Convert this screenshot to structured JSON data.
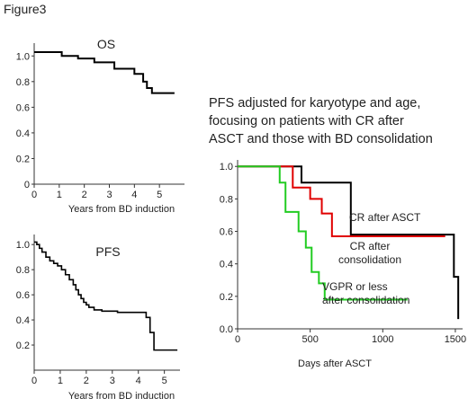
{
  "figure_label": "Figure3",
  "chart_data": [
    {
      "id": "os",
      "type": "line",
      "title": "OS",
      "xlabel": "Years from BD induction",
      "ylabel": "",
      "xlim": [
        0,
        6
      ],
      "ylim": [
        0,
        1.1
      ],
      "x_ticks": [
        0,
        1,
        2,
        3,
        4,
        5
      ],
      "y_ticks": [
        0,
        0.2,
        0.4,
        0.6,
        0.8,
        1.0
      ],
      "y_tick_labels": [
        "0",
        "0.2",
        "0.4",
        "0.6",
        "0.8",
        "1.0"
      ],
      "series": [
        {
          "color": "#000000",
          "x": [
            0,
            0.55,
            1.1,
            1.75,
            2.4,
            3.2,
            4.0,
            4.35,
            4.5,
            4.7,
            5.6
          ],
          "y": [
            1.03,
            1.03,
            1.0,
            0.98,
            0.95,
            0.9,
            0.86,
            0.8,
            0.75,
            0.71,
            0.71
          ]
        }
      ]
    },
    {
      "id": "pfs",
      "type": "line",
      "title": "PFS",
      "xlabel": "Years from BD induction",
      "ylabel": "",
      "xlim": [
        0,
        5.6
      ],
      "ylim": [
        0,
        1.08
      ],
      "x_ticks": [
        0,
        1,
        2,
        3,
        4,
        5
      ],
      "y_ticks": [
        0.2,
        0.4,
        0.6,
        0.8,
        1.0
      ],
      "y_tick_labels": [
        "0.2",
        "0.4",
        "0.6",
        "0.8",
        "1.0"
      ],
      "series": [
        {
          "color": "#000000",
          "x": [
            0,
            0.1,
            0.2,
            0.3,
            0.45,
            0.6,
            0.75,
            0.9,
            1.05,
            1.2,
            1.35,
            1.5,
            1.6,
            1.7,
            1.8,
            1.9,
            2.0,
            2.1,
            2.3,
            2.6,
            3.2,
            3.5,
            4.3,
            4.45,
            4.6,
            5.5
          ],
          "y": [
            1.02,
            1.0,
            0.97,
            0.94,
            0.9,
            0.87,
            0.85,
            0.83,
            0.8,
            0.76,
            0.72,
            0.68,
            0.64,
            0.6,
            0.57,
            0.54,
            0.52,
            0.5,
            0.48,
            0.47,
            0.46,
            0.46,
            0.42,
            0.3,
            0.16,
            0.16
          ]
        }
      ]
    },
    {
      "id": "adjusted",
      "type": "line",
      "title": "PFS adjusted for karyotype and age, focusing on patients with CR after ASCT and those with BD consolidation",
      "title_lines": [
        "PFS adjusted for karyotype and age,",
        "focusing on patients with CR after",
        "ASCT and those with BD consolidation"
      ],
      "xlabel": "Days after ASCT",
      "ylabel": "",
      "xlim": [
        0,
        1550
      ],
      "ylim": [
        0,
        1.04
      ],
      "x_ticks": [
        0,
        500,
        1000,
        1500
      ],
      "y_ticks": [
        0,
        0.2,
        0.4,
        0.6,
        0.8,
        1.0
      ],
      "y_tick_labels": [
        "0.0",
        "0.2",
        "0.4",
        "0.6",
        "0.8",
        "1.0"
      ],
      "series": [
        {
          "name": "CR after ASCT",
          "color": "#000000",
          "x": [
            0,
            380,
            440,
            780,
            1450,
            1490,
            1520
          ],
          "y": [
            1.0,
            1.0,
            0.9,
            0.58,
            0.58,
            0.32,
            0.06
          ]
        },
        {
          "name": "CR after consolidation",
          "color": "#e00000",
          "x": [
            0,
            350,
            380,
            500,
            580,
            650,
            1430
          ],
          "y": [
            1.0,
            1.0,
            0.87,
            0.8,
            0.71,
            0.57,
            0.57
          ]
        },
        {
          "name": "VGPR or less after consolidation",
          "color": "#22cc22",
          "x": [
            0,
            240,
            290,
            330,
            420,
            470,
            510,
            560,
            600,
            1170
          ],
          "y": [
            1.0,
            1.0,
            0.9,
            0.72,
            0.6,
            0.5,
            0.35,
            0.28,
            0.18,
            0.18
          ]
        }
      ],
      "series_labels": [
        {
          "lines": [
            "CR after ASCT"
          ],
          "series": 0
        },
        {
          "lines": [
            "CR after",
            "consolidation"
          ],
          "series": 1
        },
        {
          "lines": [
            "VGPR or less",
            "after consolidation"
          ],
          "series": 2
        }
      ]
    }
  ]
}
